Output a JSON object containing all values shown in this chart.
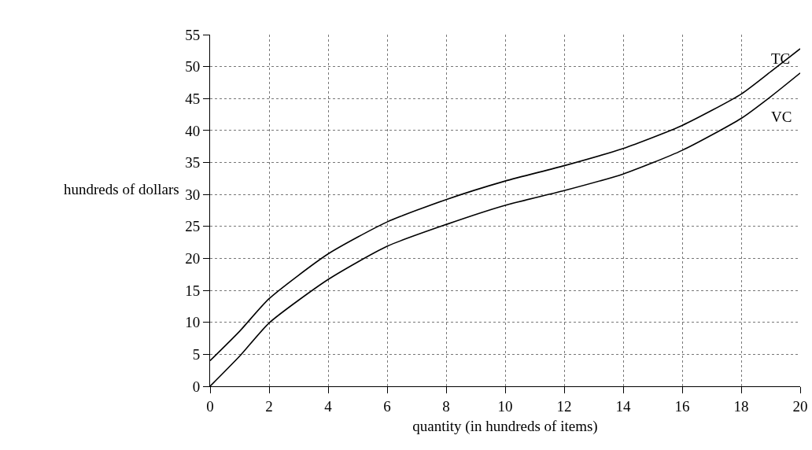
{
  "chart_data": {
    "type": "line",
    "xlabel": "quantity (in hundreds of items)",
    "ylabel": "hundreds of dollars",
    "x": [
      0,
      1,
      2,
      4,
      6,
      8,
      10,
      12,
      14,
      16,
      18,
      19,
      20
    ],
    "series": [
      {
        "name": "TC",
        "color": "#000000",
        "values": [
          4,
          8.6,
          13.7,
          20.7,
          25.7,
          29.2,
          32.1,
          34.5,
          37.2,
          40.8,
          45.7,
          49.2,
          52.8
        ]
      },
      {
        "name": "VC",
        "color": "#000000",
        "values": [
          0,
          4.7,
          9.9,
          16.7,
          21.9,
          25.3,
          28.3,
          30.6,
          33.2,
          36.9,
          41.9,
          45.3,
          49
        ]
      }
    ],
    "xlim": [
      0,
      20
    ],
    "ylim": [
      0,
      55
    ],
    "xticks": [
      0,
      2,
      4,
      6,
      8,
      10,
      12,
      14,
      16,
      18,
      20
    ],
    "yticks": [
      0,
      5,
      10,
      15,
      20,
      25,
      30,
      35,
      40,
      45,
      50,
      55
    ],
    "grid": true,
    "line_style": "solid",
    "marker": "none"
  }
}
